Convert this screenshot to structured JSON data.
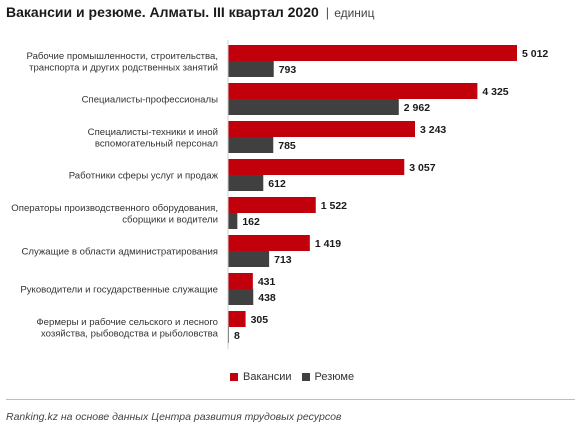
{
  "header": {
    "title": "Вакансии и резюме. Алматы. III квартал 2020",
    "separator": "|",
    "subtitle": "единиц"
  },
  "colors": {
    "vacancies": "#c1000b",
    "resumes": "#404040",
    "axis": "#cfcfcf"
  },
  "chart_data": {
    "type": "bar",
    "orientation": "horizontal",
    "title": "Вакансии и резюме. Алматы. III квартал 2020",
    "unit": "единиц",
    "categories": [
      [
        "Рабочие промышленности, строительства,",
        "транспорта и других родственных занятий"
      ],
      [
        "Специалисты-профессионалы"
      ],
      [
        "Специалисты-техники и иной",
        "вспомогательный персонал"
      ],
      [
        "Работники сферы услуг и продаж"
      ],
      [
        "Операторы производственного оборудования,",
        "сборщики и водители"
      ],
      [
        "Служащие в области администратирования"
      ],
      [
        "Руководители и государственные служащие"
      ],
      [
        "Фермеры и рабочие сельского и лесного",
        "хозяйства, рыбоводства и рыболовства"
      ]
    ],
    "series": [
      {
        "name": "Вакансии",
        "values": [
          5012,
          4325,
          3243,
          3057,
          1522,
          1419,
          431,
          305
        ],
        "labels": [
          "5 012",
          "4 325",
          "3 243",
          "3 057",
          "1 522",
          "1 419",
          "431",
          "305"
        ]
      },
      {
        "name": "Резюме",
        "values": [
          793,
          2962,
          785,
          612,
          162,
          713,
          438,
          8
        ],
        "labels": [
          "793",
          "2 962",
          "785",
          "612",
          "162",
          "713",
          "438",
          "8"
        ]
      }
    ],
    "xlim": [
      0,
      5012
    ],
    "grid": false,
    "legend_position": "bottom"
  },
  "legend": {
    "vacancies_label": "Вакансии",
    "resumes_label": "Резюме"
  },
  "footer": {
    "source": "Ranking.kz на основе данных Центра развития трудовых ресурсов"
  }
}
